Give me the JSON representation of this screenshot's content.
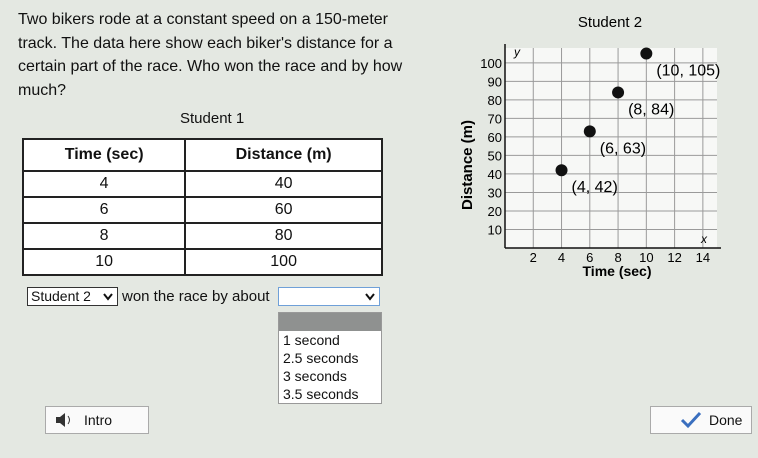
{
  "question": "Two bikers rode at a constant speed on a 150-meter track. The data here show each biker's distance for a certain part of the race. Who won the race and by how much?",
  "table": {
    "title": "Student 1",
    "header": [
      "Time (sec)",
      "Distance (m)"
    ],
    "rows": [
      [
        4,
        40
      ],
      [
        6,
        60
      ],
      [
        8,
        80
      ],
      [
        10,
        100
      ]
    ]
  },
  "answer": {
    "selected": "Student 2",
    "text": "won the race by about",
    "options": [
      "1 second",
      "2.5 seconds",
      "3 seconds",
      "3.5 seconds"
    ]
  },
  "buttons": {
    "intro": "Intro",
    "done": "Done"
  },
  "chart_data": {
    "type": "scatter",
    "title": "Student 2",
    "x_label": "Time (sec)",
    "y_label": "Distance (m)",
    "x_axis_letter": "x",
    "y_axis_letter": "y",
    "x": [
      4,
      6,
      8,
      10
    ],
    "values": [
      42,
      63,
      84,
      105
    ],
    "value_labels": [
      "(4, 42)",
      "(6, 63)",
      "(8, 84)",
      "(10, 105)"
    ],
    "color": "#111111",
    "grid": true,
    "xlim": [
      0,
      15
    ],
    "ylim": [
      0,
      108
    ],
    "xticks": [
      2,
      4,
      6,
      8,
      10,
      12,
      14
    ],
    "yticks": [
      10,
      20,
      30,
      40,
      50,
      60,
      70,
      80,
      90,
      100
    ]
  }
}
